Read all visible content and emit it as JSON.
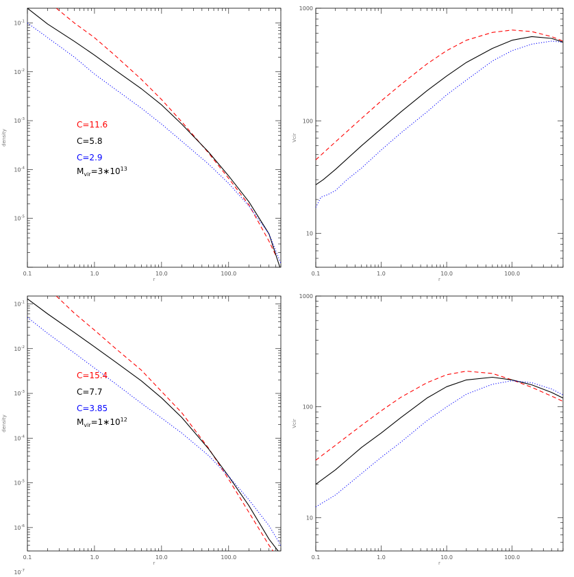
{
  "chart_data": [
    {
      "id": "density-top",
      "type": "line",
      "xlabel": "r",
      "ylabel": "density",
      "xscale": "log",
      "yscale": "log",
      "xlim": [
        0.1,
        600
      ],
      "ylim": [
        1e-06,
        0.2
      ],
      "x_ticks": [
        0.1,
        1,
        10,
        100
      ],
      "x_tick_labels": [
        "0.1",
        "1.0",
        "10.0",
        "100.0"
      ],
      "y_ticks": [
        0.1,
        0.01,
        0.001,
        0.0001,
        1e-05
      ],
      "y_tick_mantissa": [
        "10",
        "10",
        "10",
        "10",
        "10"
      ],
      "y_tick_exponent": [
        "-1",
        "-2",
        "-3",
        "-4",
        "-5"
      ],
      "legend": {
        "placement": "left-middle",
        "entries": [
          {
            "label": "C=11.6",
            "color": "#ff0000"
          },
          {
            "label": "C=5.8",
            "color": "#000000"
          },
          {
            "label": "C=2.9",
            "color": "#0000ff"
          }
        ],
        "mass": {
          "base": "M",
          "sub": "vir",
          "text": "=3∗10",
          "sup": "13",
          "color": "#000000"
        }
      },
      "series": [
        {
          "color": "#ff0000",
          "dash": "dashed",
          "x": [
            0.27,
            0.5,
            1,
            2,
            5,
            10,
            20,
            50,
            100,
            200,
            400,
            500
          ],
          "y": [
            0.2,
            0.1,
            0.05,
            0.022,
            0.007,
            0.0027,
            0.00095,
            0.00022,
            6.6e-05,
            1.9e-05,
            3.4e-06,
            1.8e-06
          ]
        },
        {
          "color": "#000000",
          "dash": "solid",
          "x": [
            0.1,
            0.2,
            0.5,
            1,
            2,
            5,
            10,
            20,
            50,
            100,
            200,
            400,
            580
          ],
          "y": [
            0.2,
            0.095,
            0.042,
            0.022,
            0.011,
            0.0045,
            0.0021,
            0.00085,
            0.00023,
            7.4e-05,
            2.2e-05,
            4.8e-06,
            1e-06
          ]
        },
        {
          "color": "#0000ff",
          "dash": "dotted",
          "x": [
            0.1,
            0.2,
            0.5,
            1,
            2,
            5,
            10,
            20,
            50,
            100,
            200,
            400,
            600
          ],
          "y": [
            0.1,
            0.05,
            0.02,
            0.009,
            0.0045,
            0.0018,
            0.00085,
            0.00038,
            0.00013,
            5.2e-05,
            1.8e-05,
            4.8e-06,
            1.2e-06
          ]
        }
      ]
    },
    {
      "id": "vcir-top",
      "type": "line",
      "xlabel": "r",
      "ylabel": "Vcir",
      "xscale": "log",
      "yscale": "log",
      "xlim": [
        0.1,
        600
      ],
      "ylim": [
        5,
        1000
      ],
      "x_ticks": [
        0.1,
        1,
        10,
        100
      ],
      "x_tick_labels": [
        "0.1",
        "1.0",
        "10.0",
        "100.0"
      ],
      "y_ticks": [
        10,
        100,
        1000
      ],
      "y_tick_labels": [
        "10",
        "100",
        "1000"
      ],
      "series": [
        {
          "color": "#ff0000",
          "dash": "dashed",
          "x": [
            0.1,
            0.2,
            0.5,
            1,
            2,
            5,
            10,
            20,
            50,
            100,
            200,
            400,
            600
          ],
          "y": [
            45,
            65,
            105,
            150,
            210,
            320,
            420,
            520,
            610,
            640,
            620,
            560,
            510
          ]
        },
        {
          "color": "#000000",
          "dash": "solid",
          "x": [
            0.1,
            0.13,
            0.2,
            0.5,
            1,
            2,
            5,
            10,
            20,
            50,
            100,
            200,
            400,
            600
          ],
          "y": [
            27,
            30,
            37,
            60,
            85,
            120,
            185,
            250,
            330,
            440,
            520,
            560,
            540,
            500
          ]
        },
        {
          "color": "#0000ff",
          "dash": "dotted",
          "x": [
            0.1,
            0.12,
            0.15,
            0.2,
            0.3,
            0.5,
            1,
            2,
            5,
            10,
            20,
            50,
            100,
            200,
            400,
            600
          ],
          "y": [
            17,
            21,
            22,
            24,
            30,
            38,
            55,
            78,
            120,
            170,
            230,
            340,
            420,
            480,
            510,
            500
          ]
        }
      ]
    },
    {
      "id": "density-bottom",
      "type": "line",
      "xlabel": "r",
      "ylabel": "density",
      "xscale": "log",
      "yscale": "log",
      "xlim": [
        0.1,
        600
      ],
      "ylim": [
        3e-07,
        0.15
      ],
      "x_ticks": [
        0.1,
        1,
        10,
        100
      ],
      "x_tick_labels": [
        "0.1",
        "1.0",
        "10.0",
        "100.0"
      ],
      "y_ticks": [
        0.1,
        0.01,
        0.001,
        0.0001,
        1e-05,
        1e-06,
        1e-07
      ],
      "y_tick_mantissa": [
        "10",
        "10",
        "10",
        "10",
        "10",
        "10",
        "10"
      ],
      "y_tick_exponent": [
        "-1",
        "-2",
        "-3",
        "-4",
        "-5",
        "-6",
        "-7"
      ],
      "legend": {
        "placement": "left-middle",
        "entries": [
          {
            "label": "C=15.4",
            "color": "#ff0000"
          },
          {
            "label": "C=7.7",
            "color": "#000000"
          },
          {
            "label": "C=3.85",
            "color": "#0000ff"
          }
        ],
        "mass": {
          "base": "M",
          "sub": "vir",
          "text": "=1∗10",
          "sup": "12",
          "color": "#000000"
        }
      },
      "series": [
        {
          "color": "#ff0000",
          "dash": "dashed",
          "x": [
            0.27,
            0.5,
            1,
            2,
            5,
            10,
            20,
            50,
            100,
            200,
            400,
            500
          ],
          "y": [
            0.15,
            0.062,
            0.026,
            0.0105,
            0.0033,
            0.0011,
            0.00037,
            6e-05,
            1.2e-05,
            2.2e-06,
            4e-07,
            2.5e-07
          ]
        },
        {
          "color": "#000000",
          "dash": "solid",
          "x": [
            0.1,
            0.2,
            0.5,
            1,
            2,
            5,
            10,
            20,
            50,
            100,
            200,
            400,
            600
          ],
          "y": [
            0.13,
            0.06,
            0.023,
            0.011,
            0.0052,
            0.0019,
            0.00079,
            0.00029,
            5.8e-05,
            1.4e-05,
            3.1e-06,
            5.5e-07,
            2.5e-07
          ]
        },
        {
          "color": "#0000ff",
          "dash": "dotted",
          "x": [
            0.1,
            0.2,
            0.5,
            1,
            2,
            5,
            10,
            20,
            50,
            100,
            200,
            400,
            600
          ],
          "y": [
            0.05,
            0.022,
            0.008,
            0.0037,
            0.0017,
            0.0006,
            0.00028,
            0.00013,
            4.1e-05,
            1.4e-05,
            4.2e-06,
            1.1e-06,
            4e-07
          ]
        }
      ]
    },
    {
      "id": "vcir-bottom",
      "type": "line",
      "xlabel": "r",
      "ylabel": "Vcir",
      "xscale": "log",
      "yscale": "log",
      "xlim": [
        0.1,
        600
      ],
      "ylim": [
        5,
        1000
      ],
      "x_ticks": [
        0.1,
        1,
        10,
        100
      ],
      "x_tick_labels": [
        "0.1",
        "1.0",
        "10.0",
        "100.0"
      ],
      "y_ticks": [
        10,
        100,
        1000
      ],
      "y_tick_labels": [
        "10",
        "100",
        "1000"
      ],
      "series": [
        {
          "color": "#ff0000",
          "dash": "dashed",
          "x": [
            0.1,
            0.2,
            0.5,
            1,
            2,
            5,
            10,
            20,
            50,
            100,
            200,
            400,
            600
          ],
          "y": [
            33,
            45,
            68,
            92,
            122,
            165,
            195,
            210,
            200,
            175,
            150,
            125,
            112
          ]
        },
        {
          "color": "#000000",
          "dash": "solid",
          "x": [
            0.1,
            0.2,
            0.5,
            1,
            2,
            5,
            10,
            20,
            50,
            100,
            200,
            400,
            600
          ],
          "y": [
            20,
            27,
            43,
            58,
            80,
            120,
            152,
            175,
            185,
            175,
            158,
            135,
            120
          ]
        },
        {
          "color": "#0000ff",
          "dash": "dotted",
          "x": [
            0.1,
            0.2,
            0.5,
            1,
            2,
            5,
            10,
            20,
            50,
            100,
            200,
            400,
            600
          ],
          "y": [
            12.5,
            16,
            25,
            35,
            48,
            75,
            100,
            130,
            160,
            172,
            165,
            145,
            128
          ]
        }
      ]
    }
  ]
}
